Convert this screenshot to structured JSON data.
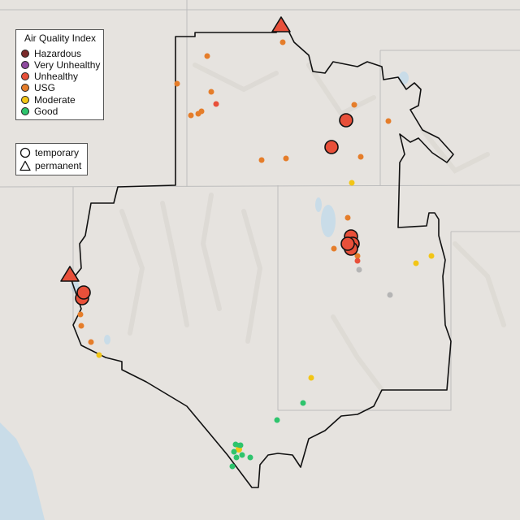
{
  "colors": {
    "hazardous": "#7a2a2a",
    "very_unhealthy": "#8e4a9e",
    "unhealthy": "#e8503a",
    "usg": "#e57d2a",
    "moderate": "#f2c516",
    "good": "#2ec46d",
    "no_data": "#b5b5b5",
    "water": "#c9dce8",
    "land": "#e6e3df",
    "boundary": "#111111"
  },
  "legend": {
    "title": "Air Quality Index",
    "items": [
      {
        "label": "Hazardous",
        "color": "#7a2a2a"
      },
      {
        "label": "Very Unhealthy",
        "color": "#8e4a9e"
      },
      {
        "label": "Unhealthy",
        "color": "#e8503a"
      },
      {
        "label": "USG",
        "color": "#e57d2a"
      },
      {
        "label": "Moderate",
        "color": "#f2c516"
      },
      {
        "label": "Good",
        "color": "#2ec46d"
      }
    ]
  },
  "type_legend": {
    "items": [
      {
        "label": "temporary",
        "shape": "circle"
      },
      {
        "label": "permanent",
        "shape": "triangle"
      }
    ]
  }
}
